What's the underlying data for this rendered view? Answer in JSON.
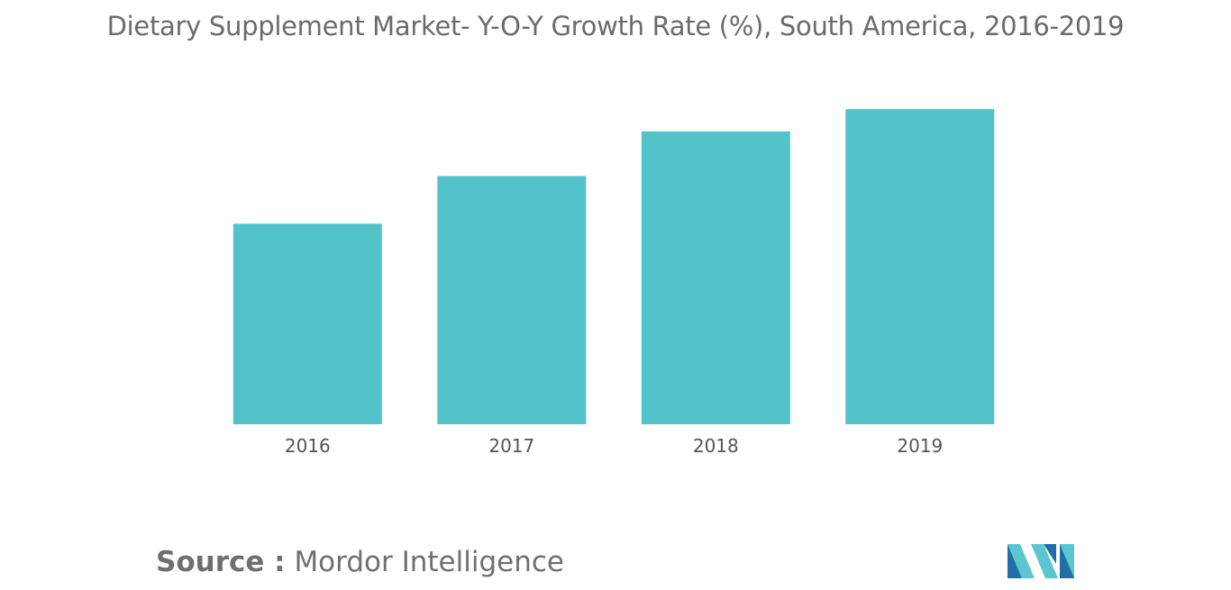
{
  "title": "Dietary Supplement Market- Y-O-Y Growth Rate (%), South America, 2016-2019",
  "source": {
    "prefix": "Source :",
    "name": "Mordor Intelligence"
  },
  "logo": {
    "icon": "mordor-intelligence-logo-icon",
    "colors": [
      "#1f6fa3",
      "#5bc6d0"
    ]
  },
  "colors": {
    "bar": "#52c3c9",
    "title": "#6b6b6b",
    "tick": "#555555"
  },
  "chart_data": {
    "type": "bar",
    "categories": [
      "2016",
      "2017",
      "2018",
      "2019"
    ],
    "values": [
      6.3,
      7.8,
      9.2,
      9.9
    ],
    "title": "Dietary Supplement Market- Y-O-Y Growth Rate (%), South America, 2016-2019",
    "xlabel": "",
    "ylabel": "",
    "ylim": [
      0,
      10.5
    ],
    "grid": false,
    "legend": "none"
  }
}
